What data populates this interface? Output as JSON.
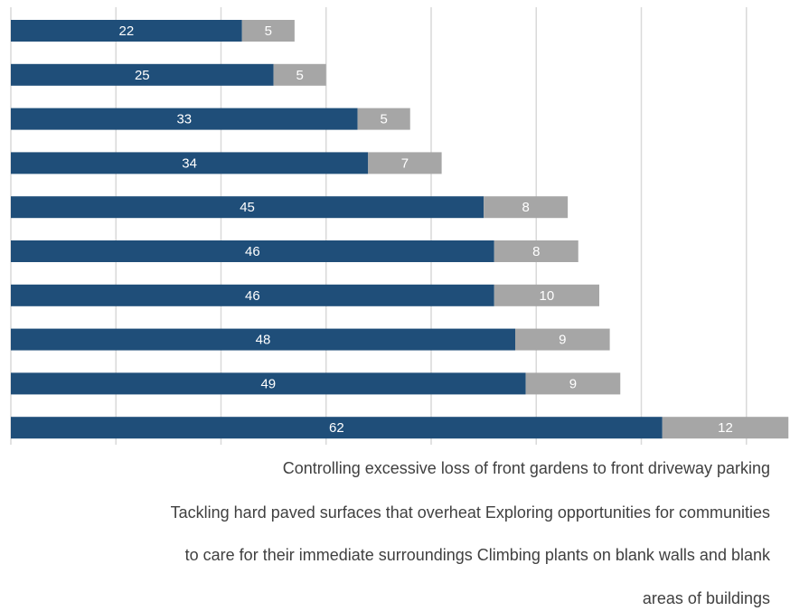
{
  "chart_data": {
    "type": "bar",
    "orientation": "horizontal",
    "stacked": true,
    "colors": [
      "#1f4e79",
      "#a6a6a6"
    ],
    "grid": true,
    "xlim": [
      0,
      74
    ],
    "series": [
      {
        "values": [
          22,
          25,
          33,
          34,
          45,
          46,
          46,
          48,
          49,
          62
        ]
      },
      {
        "values": [
          5,
          5,
          5,
          7,
          8,
          8,
          10,
          9,
          9,
          12
        ]
      }
    ]
  },
  "captions": [
    "Controlling excessive loss of front gardens to front driveway parking",
    "Tackling hard paved surfaces that overheat Exploring opportunities for communities",
    "to care for their immediate surroundings Climbing plants on blank walls and blank",
    "areas of buildings"
  ]
}
